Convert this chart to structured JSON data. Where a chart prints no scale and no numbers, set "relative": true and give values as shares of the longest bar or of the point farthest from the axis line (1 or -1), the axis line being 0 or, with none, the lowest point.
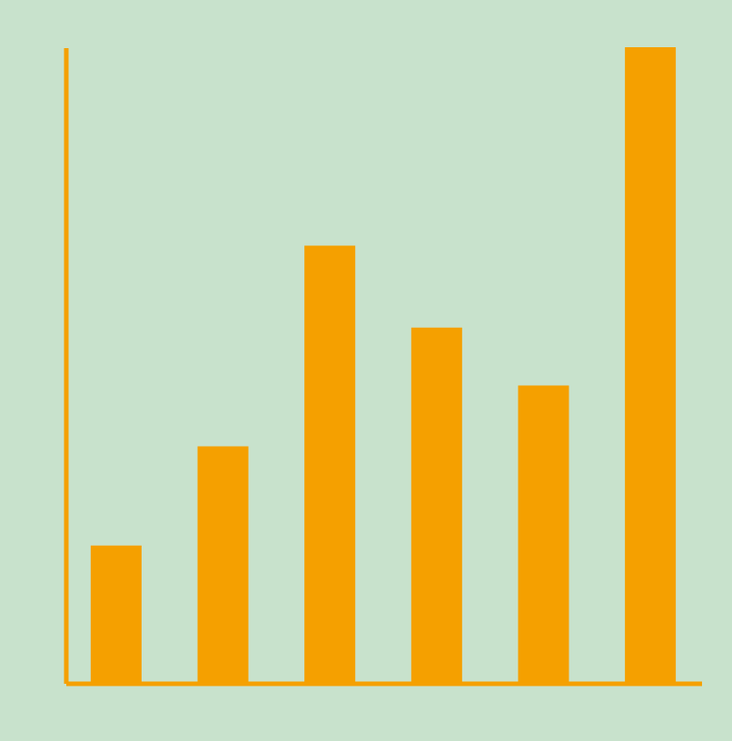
{
  "chart_data": {
    "type": "bar",
    "relative": true,
    "categories": [
      null,
      null,
      null,
      null,
      null,
      null
    ],
    "values": [
      0.216,
      0.372,
      0.688,
      0.559,
      0.468,
      1
    ],
    "color": "#f5a000"
  }
}
